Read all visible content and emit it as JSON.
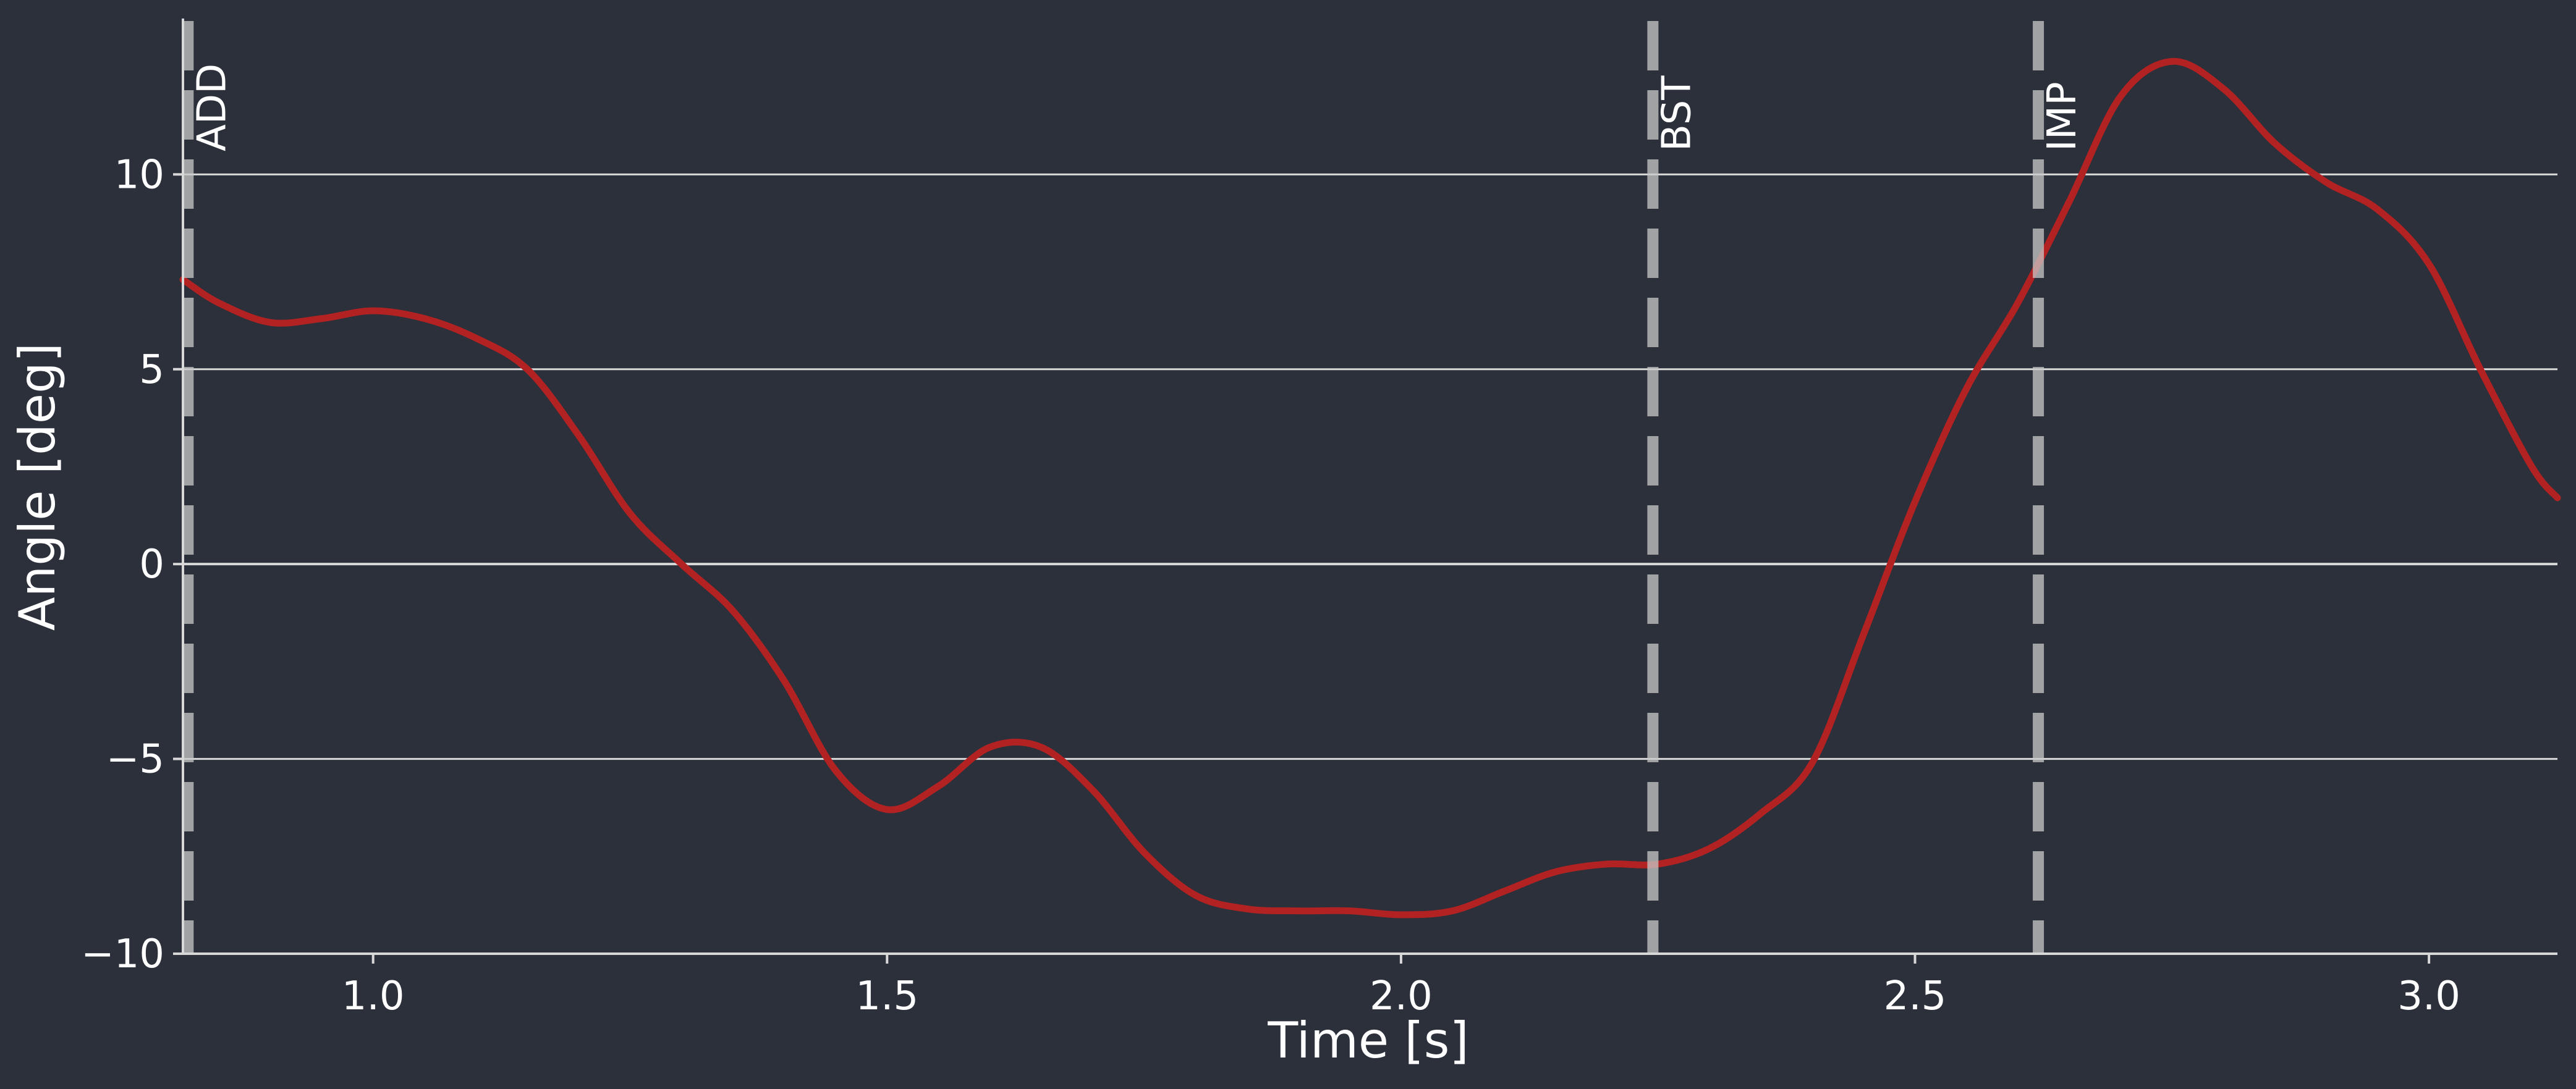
{
  "chart_data": {
    "type": "line",
    "title": "",
    "xlabel": "Time [s]",
    "ylabel": "Angle [deg]",
    "xlim": [
      0.815,
      3.125
    ],
    "ylim": [
      -10,
      14
    ],
    "x_ticks": [
      1.0,
      1.5,
      2.0,
      2.5,
      3.0
    ],
    "x_tick_labels": [
      "1.0",
      "1.5",
      "2.0",
      "2.5",
      "3.0"
    ],
    "y_ticks": [
      -10,
      -5,
      0,
      5,
      10
    ],
    "y_tick_labels": [
      "−10",
      "−5",
      "0",
      "5",
      "10"
    ],
    "grid": "horizontal",
    "background_color": "#2b303b",
    "series": [
      {
        "color": "#b22222",
        "x": [
          0.815,
          0.85,
          0.9,
          0.95,
          1.0,
          1.05,
          1.1,
          1.15,
          1.2,
          1.25,
          1.3,
          1.35,
          1.4,
          1.45,
          1.5,
          1.55,
          1.6,
          1.65,
          1.7,
          1.75,
          1.8,
          1.85,
          1.9,
          1.95,
          2.0,
          2.05,
          2.1,
          2.15,
          2.2,
          2.25,
          2.3,
          2.35,
          2.4,
          2.45,
          2.5,
          2.55,
          2.6,
          2.65,
          2.7,
          2.75,
          2.8,
          2.85,
          2.9,
          2.95,
          3.0,
          3.05,
          3.1,
          3.125
        ],
        "y": [
          7.3,
          6.7,
          6.2,
          6.3,
          6.5,
          6.3,
          5.8,
          5.0,
          3.3,
          1.3,
          0.0,
          -1.2,
          -3.0,
          -5.3,
          -6.3,
          -5.7,
          -4.7,
          -4.7,
          -5.8,
          -7.4,
          -8.5,
          -8.85,
          -8.9,
          -8.9,
          -9.0,
          -8.9,
          -8.4,
          -7.9,
          -7.7,
          -7.7,
          -7.3,
          -6.4,
          -5.1,
          -1.8,
          1.6,
          4.5,
          6.7,
          9.3,
          12.0,
          12.9,
          12.2,
          10.8,
          9.8,
          9.1,
          7.7,
          5.0,
          2.5,
          1.7
        ]
      }
    ],
    "events": [
      {
        "label": "ADD",
        "x": 0.82
      },
      {
        "label": "BST",
        "x": 2.245
      },
      {
        "label": "IMP",
        "x": 2.62
      }
    ]
  }
}
